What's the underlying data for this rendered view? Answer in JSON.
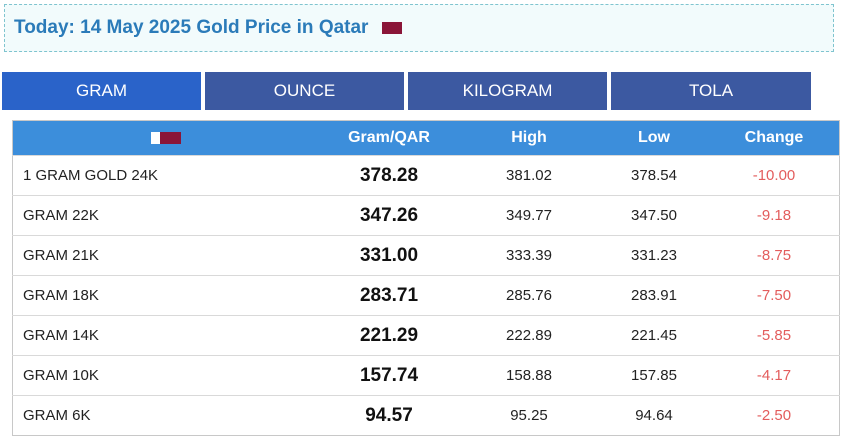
{
  "header": {
    "title": "Today: 14 May 2025 Gold Price in Qatar",
    "flag_icon": "qatar-flag-icon",
    "flag_color": "#8a1538"
  },
  "tabs": [
    {
      "label": "GRAM",
      "active": true
    },
    {
      "label": "OUNCE",
      "active": false
    },
    {
      "label": "KILOGRAM",
      "active": false
    },
    {
      "label": "TOLA",
      "active": false
    }
  ],
  "table": {
    "columns": {
      "flag_icon": "qatar-flag-icon",
      "price": "Gram/QAR",
      "high": "High",
      "low": "Low",
      "change": "Change"
    },
    "rows": [
      {
        "name": "1 GRAM GOLD 24K",
        "price": "378.28",
        "high": "381.02",
        "low": "378.54",
        "change": "-10.00"
      },
      {
        "name": "GRAM 22K",
        "price": "347.26",
        "high": "349.77",
        "low": "347.50",
        "change": "-9.18"
      },
      {
        "name": "GRAM 21K",
        "price": "331.00",
        "high": "333.39",
        "low": "331.23",
        "change": "-8.75"
      },
      {
        "name": "GRAM 18K",
        "price": "283.71",
        "high": "285.76",
        "low": "283.91",
        "change": "-7.50"
      },
      {
        "name": "GRAM 14K",
        "price": "221.29",
        "high": "222.89",
        "low": "221.45",
        "change": "-5.85"
      },
      {
        "name": "GRAM 10K",
        "price": "157.74",
        "high": "158.88",
        "low": "157.85",
        "change": "-4.17"
      },
      {
        "name": "GRAM 6K",
        "price": "94.57",
        "high": "95.25",
        "low": "94.64",
        "change": "-2.50"
      }
    ]
  },
  "colors": {
    "title": "#2b7bb9",
    "tab_active": "#2a63c9",
    "tab_inactive": "#3c59a1",
    "table_header": "#3c8edb",
    "negative_change": "#e35d5d"
  }
}
